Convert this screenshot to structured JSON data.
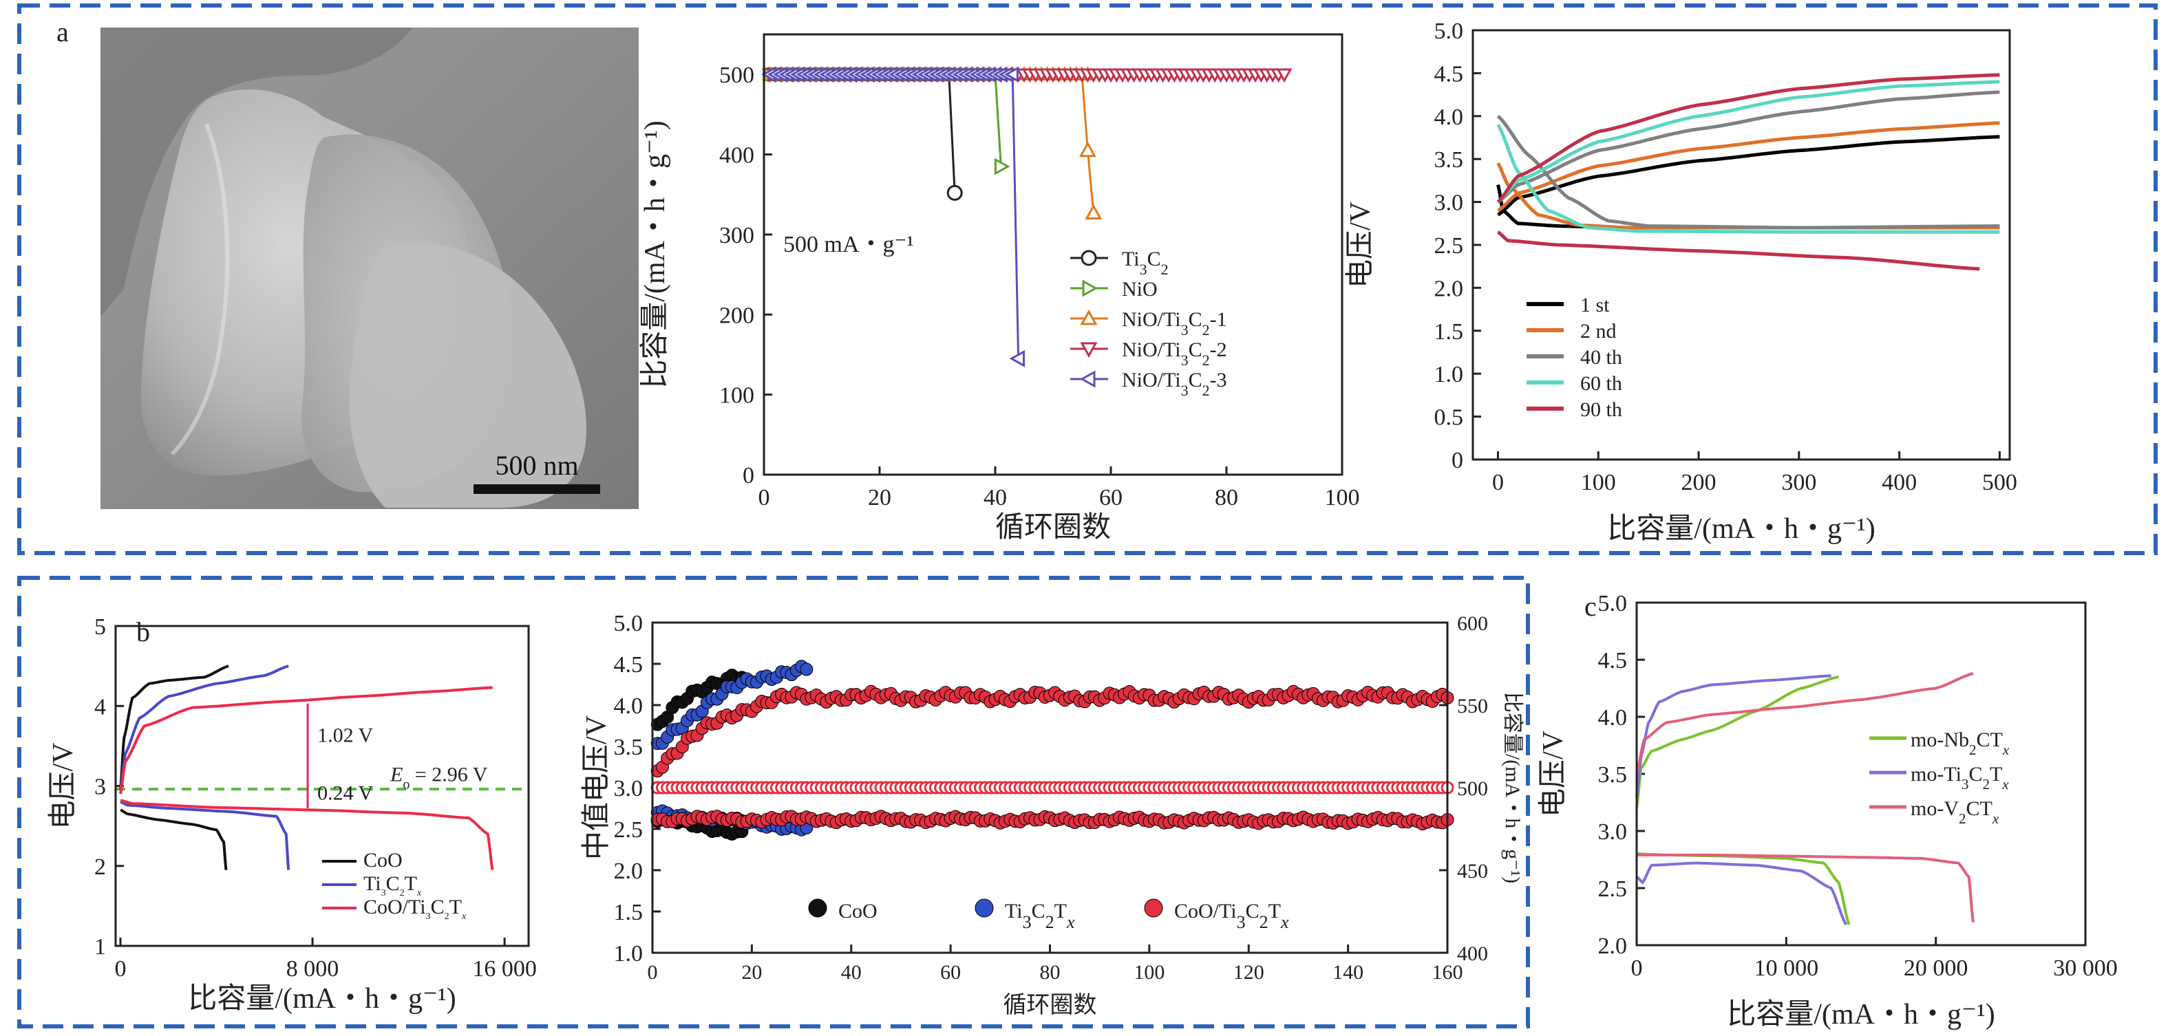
{
  "figure": {
    "panel_a_label": "a",
    "panel_b_label": "b",
    "panel_c_label": "c",
    "sem_scale_label": "500 nm",
    "sem_image": "SEM micrograph of layered flakes"
  },
  "chart_data": [
    {
      "id": "a_cycling",
      "type": "line",
      "xlabel": "循环圈数",
      "ylabel": "比容量/(mA・h・g⁻¹)",
      "annotation": "500 mA・g⁻¹",
      "xlim": [
        0,
        100
      ],
      "ylim": [
        0,
        550
      ],
      "xticks": [
        0,
        20,
        40,
        60,
        80,
        100
      ],
      "yticks": [
        0,
        100,
        200,
        300,
        400,
        500
      ],
      "series": [
        {
          "name": "Ti3C2",
          "legend_main": "Ti",
          "legend_sub1": "3",
          "legend_mid": "C",
          "legend_sub2": "2",
          "legend_tail": "",
          "color": "#222222",
          "marker": "circle",
          "x": [
            1,
            32,
            33
          ],
          "y": [
            500,
            500,
            352
          ],
          "marker_x": [
            33
          ],
          "marker_y": [
            352
          ]
        },
        {
          "name": "NiO",
          "legend_main": "NiO",
          "legend_sub1": "",
          "legend_mid": "",
          "legend_sub2": "",
          "legend_tail": "",
          "color": "#5aa02c",
          "marker": "tri-right",
          "x": [
            1,
            40,
            41
          ],
          "y": [
            500,
            500,
            385
          ],
          "marker_x": [
            41
          ],
          "marker_y": [
            385
          ]
        },
        {
          "name": "NiO/Ti3C2-1",
          "legend_main": "NiO/Ti",
          "legend_sub1": "3",
          "legend_mid": "C",
          "legend_sub2": "2",
          "legend_tail": "-1",
          "color": "#e07b1a",
          "marker": "tri-up",
          "x": [
            1,
            55,
            56,
            57
          ],
          "y": [
            500,
            500,
            405,
            327
          ],
          "marker_x": [
            56,
            57
          ],
          "marker_y": [
            405,
            327
          ]
        },
        {
          "name": "NiO/Ti3C2-2",
          "legend_main": "NiO/Ti",
          "legend_sub1": "3",
          "legend_mid": "C",
          "legend_sub2": "2",
          "legend_tail": "-2",
          "color": "#c0304a",
          "marker": "tri-down",
          "x": [
            1,
            90
          ],
          "y": [
            500,
            500
          ],
          "marker_x": [],
          "marker_y": []
        },
        {
          "name": "NiO/Ti3C2-3",
          "legend_main": "NiO/Ti",
          "legend_sub1": "3",
          "legend_mid": "C",
          "legend_sub2": "2",
          "legend_tail": "-3",
          "color": "#5b4fb5",
          "marker": "tri-left",
          "x": [
            1,
            43,
            44
          ],
          "y": [
            500,
            500,
            145
          ],
          "marker_x": [
            44
          ],
          "marker_y": [
            145
          ]
        }
      ]
    },
    {
      "id": "a_voltage",
      "type": "line",
      "xlabel": "比容量/(mA・h・g⁻¹)",
      "ylabel": "电压/V",
      "xlim": [
        -25,
        510
      ],
      "ylim": [
        0,
        5
      ],
      "xticks": [
        0,
        100,
        200,
        300,
        400,
        500
      ],
      "yticks": [
        0,
        0.5,
        1.0,
        1.5,
        2.0,
        2.5,
        3.0,
        3.5,
        4.0,
        4.5,
        5.0
      ],
      "ytick_labels": [
        "0",
        "0.5",
        "1.0",
        "1.5",
        "2.0",
        "2.5",
        "3.0",
        "3.5",
        "4.0",
        "4.5",
        "5.0"
      ],
      "series": [
        {
          "name": "1 st",
          "color": "#000000",
          "charge_x": [
            0,
            20,
            100,
            200,
            300,
            400,
            500
          ],
          "charge_y": [
            2.85,
            3.05,
            3.3,
            3.48,
            3.6,
            3.7,
            3.76
          ],
          "discharge_x": [
            0,
            5,
            20,
            60,
            120,
            300,
            500
          ],
          "discharge_y": [
            3.2,
            2.9,
            2.75,
            2.72,
            2.7,
            2.7,
            2.7
          ]
        },
        {
          "name": "2 nd",
          "color": "#e0702a",
          "charge_x": [
            0,
            20,
            100,
            200,
            300,
            400,
            500
          ],
          "charge_y": [
            2.9,
            3.1,
            3.42,
            3.62,
            3.75,
            3.85,
            3.92
          ],
          "discharge_x": [
            0,
            10,
            40,
            80,
            130,
            300,
            500
          ],
          "discharge_y": [
            3.45,
            3.2,
            2.85,
            2.73,
            2.7,
            2.7,
            2.7
          ]
        },
        {
          "name": "40 th",
          "color": "#808080",
          "charge_x": [
            0,
            20,
            100,
            200,
            300,
            400,
            500
          ],
          "charge_y": [
            3.0,
            3.2,
            3.6,
            3.85,
            4.05,
            4.2,
            4.28
          ],
          "discharge_x": [
            0,
            30,
            70,
            110,
            150,
            300,
            500
          ],
          "discharge_y": [
            4.0,
            3.55,
            3.05,
            2.78,
            2.72,
            2.7,
            2.72
          ]
        },
        {
          "name": "60 th",
          "color": "#5ad6c2",
          "charge_x": [
            0,
            20,
            100,
            200,
            300,
            400,
            500
          ],
          "charge_y": [
            3.0,
            3.25,
            3.7,
            4.0,
            4.22,
            4.35,
            4.4
          ],
          "discharge_x": [
            0,
            20,
            50,
            90,
            140,
            300,
            500
          ],
          "discharge_y": [
            3.9,
            3.35,
            2.9,
            2.7,
            2.66,
            2.65,
            2.65
          ]
        },
        {
          "name": "90 th",
          "color": "#c0304a",
          "charge_x": [
            0,
            20,
            100,
            200,
            300,
            400,
            500
          ],
          "charge_y": [
            3.0,
            3.3,
            3.82,
            4.13,
            4.32,
            4.43,
            4.48
          ],
          "discharge_x": [
            0,
            10,
            60,
            200,
            350,
            480
          ],
          "discharge_y": [
            2.65,
            2.55,
            2.5,
            2.43,
            2.35,
            2.22
          ]
        }
      ]
    },
    {
      "id": "b_voltage",
      "type": "line",
      "xlabel": "比容量/(mA・h・g⁻¹)",
      "ylabel": "电压/V",
      "xlim": [
        -200,
        17000
      ],
      "ylim": [
        1,
        5
      ],
      "xticks": [
        0,
        8000,
        16000
      ],
      "xtick_labels": [
        "0",
        "8 000",
        "16 000"
      ],
      "yticks": [
        1,
        2,
        3,
        4,
        5
      ],
      "equilibrium_potential": 2.96,
      "eq_label_main": "E",
      "eq_label_sub": "o",
      "eq_label_tail": " = 2.96 V",
      "gap_label_top": "1.02 V",
      "gap_label_bottom": "0.24 V",
      "gap_x": 7800,
      "gap_top_y": 4.03,
      "gap_bottom_y": 2.72,
      "series": [
        {
          "name": "CoO",
          "color": "#111111",
          "charge_x": [
            0,
            150,
            500,
            1200,
            2000,
            3500,
            4500
          ],
          "charge_y": [
            2.95,
            3.6,
            4.1,
            4.28,
            4.32,
            4.36,
            4.5
          ],
          "discharge_x": [
            0,
            300,
            1500,
            3000,
            4000,
            4300,
            4400
          ],
          "discharge_y": [
            2.7,
            2.65,
            2.58,
            2.52,
            2.45,
            2.3,
            1.95
          ]
        },
        {
          "name": "Ti3C2Tx",
          "color": "#4a48c8",
          "charge_x": [
            0,
            200,
            800,
            2000,
            4000,
            6000,
            7000
          ],
          "charge_y": [
            2.95,
            3.4,
            3.85,
            4.12,
            4.28,
            4.38,
            4.5
          ],
          "discharge_x": [
            0,
            300,
            2000,
            4500,
            6500,
            6900,
            7000
          ],
          "discharge_y": [
            2.8,
            2.76,
            2.72,
            2.68,
            2.62,
            2.4,
            1.95
          ]
        },
        {
          "name": "CoO/Ti3C2Tx",
          "color": "#ef2a4a",
          "charge_x": [
            0,
            200,
            1000,
            3000,
            7000,
            10000,
            13000,
            15500
          ],
          "charge_y": [
            2.9,
            3.3,
            3.75,
            3.98,
            4.06,
            4.12,
            4.18,
            4.23
          ],
          "discharge_x": [
            0,
            500,
            4000,
            8000,
            12000,
            14500,
            15300,
            15500
          ],
          "discharge_y": [
            2.82,
            2.78,
            2.73,
            2.7,
            2.66,
            2.6,
            2.4,
            1.95
          ]
        }
      ],
      "legend": [
        {
          "main": "CoO",
          "sub1": "",
          "mid": "",
          "sub2": "",
          "it": ""
        },
        {
          "main": "Ti",
          "sub1": "3",
          "mid": "C",
          "sub2": "2",
          "it": "T",
          "itsub": "x"
        },
        {
          "main": "CoO/Ti",
          "sub1": "3",
          "mid": "C",
          "sub2": "2",
          "it": "T",
          "itsub": "x"
        }
      ]
    },
    {
      "id": "b_median",
      "type": "scatter",
      "xlabel": "循环圈数",
      "ylabel": "中值电压/V",
      "ylabel_right": "比容量/(mA・h・g⁻¹)",
      "xlim": [
        0,
        160
      ],
      "ylim": [
        1.0,
        5.0
      ],
      "ylim_right": [
        400,
        600
      ],
      "xticks": [
        0,
        20,
        40,
        60,
        80,
        100,
        120,
        140,
        160
      ],
      "yticks": [
        1.0,
        1.5,
        2.0,
        2.5,
        3.0,
        3.5,
        4.0,
        4.5,
        5.0
      ],
      "ytick_labels": [
        "1.0",
        "1.5",
        "2.0",
        "2.5",
        "3.0",
        "3.5",
        "4.0",
        "4.5",
        "5.0"
      ],
      "yticks_right": [
        400,
        450,
        500,
        550,
        600
      ],
      "capacity_value": 500,
      "series": [
        {
          "name": "CoO",
          "color": "#111111",
          "n": 18,
          "charge_start": 3.72,
          "charge_end": 4.35,
          "discharge_start": 2.62,
          "discharge_end": 2.45
        },
        {
          "name": "Ti3C2Tx",
          "color": "#3050c8",
          "n": 31,
          "charge_start": 3.5,
          "charge_end": 4.42,
          "discharge_start": 2.7,
          "discharge_end": 2.5
        },
        {
          "name": "CoO/Ti3C2Tx",
          "color": "#e23040",
          "n": 160,
          "charge_start": 3.25,
          "charge_end": 4.1,
          "discharge_start": 2.62,
          "discharge_end": 2.6
        }
      ],
      "legend": [
        {
          "main": "CoO"
        },
        {
          "main": "Ti",
          "sub1": "3",
          "mid": "C",
          "sub2": "2",
          "it": "T",
          "itsub": "x"
        },
        {
          "main": "CoO/Ti",
          "sub1": "3",
          "mid": "C",
          "sub2": "2",
          "it": "T",
          "itsub": "x"
        }
      ]
    },
    {
      "id": "c_voltage",
      "type": "line",
      "xlabel": "比容量/(mA・h・g⁻¹)",
      "ylabel": "电压/V",
      "xlim": [
        0,
        30000
      ],
      "ylim": [
        2.0,
        5.0
      ],
      "xticks": [
        0,
        10000,
        20000,
        30000
      ],
      "xtick_labels": [
        "0",
        "10 000",
        "20 000",
        "30 000"
      ],
      "yticks": [
        2.0,
        2.5,
        3.0,
        3.5,
        4.0,
        4.5,
        5.0
      ],
      "ytick_labels": [
        "2.0",
        "2.5",
        "3.0",
        "3.5",
        "4.0",
        "4.5",
        "5.0"
      ],
      "series": [
        {
          "name": "mo-Nb2CTx",
          "color": "#7cc130",
          "charge_x": [
            0,
            300,
            1000,
            3000,
            5000,
            8000,
            11000,
            13500
          ],
          "charge_y": [
            3.2,
            3.55,
            3.7,
            3.8,
            3.88,
            4.05,
            4.25,
            4.35
          ],
          "discharge_x": [
            0,
            2000,
            6000,
            10000,
            12500,
            13500,
            14200
          ],
          "discharge_y": [
            2.8,
            2.79,
            2.78,
            2.76,
            2.72,
            2.55,
            2.18
          ]
        },
        {
          "name": "mo-Ti3C2Tx",
          "color": "#7b70d8",
          "charge_x": [
            0,
            300,
            800,
            1500,
            3000,
            5000,
            9000,
            13000
          ],
          "charge_y": [
            3.3,
            3.65,
            3.95,
            4.13,
            4.22,
            4.28,
            4.32,
            4.36
          ],
          "discharge_x": [
            0,
            400,
            1000,
            4000,
            8000,
            11000,
            13000,
            14000
          ],
          "discharge_y": [
            2.6,
            2.55,
            2.7,
            2.72,
            2.7,
            2.65,
            2.5,
            2.18
          ]
        },
        {
          "name": "mo-V2CTx",
          "color": "#e0607a",
          "charge_x": [
            0,
            500,
            2000,
            5000,
            10000,
            15000,
            20000,
            22500
          ],
          "charge_y": [
            3.5,
            3.8,
            3.95,
            4.02,
            4.08,
            4.15,
            4.25,
            4.38
          ],
          "discharge_x": [
            0,
            5000,
            10000,
            15000,
            19000,
            21500,
            22200,
            22500
          ],
          "discharge_y": [
            2.79,
            2.79,
            2.78,
            2.77,
            2.76,
            2.72,
            2.6,
            2.2
          ]
        }
      ],
      "legend": [
        {
          "main": "mo-Nb",
          "sub1": "2",
          "mid": "C",
          "it": "T",
          "itsub": "x"
        },
        {
          "main": "mo-Ti",
          "sub1": "3",
          "mid": "C",
          "sub2": "2",
          "it": "T",
          "itsub": "x"
        },
        {
          "main": "mo-V",
          "sub1": "2",
          "mid": "C",
          "it": "T",
          "itsub": "x"
        }
      ]
    }
  ]
}
